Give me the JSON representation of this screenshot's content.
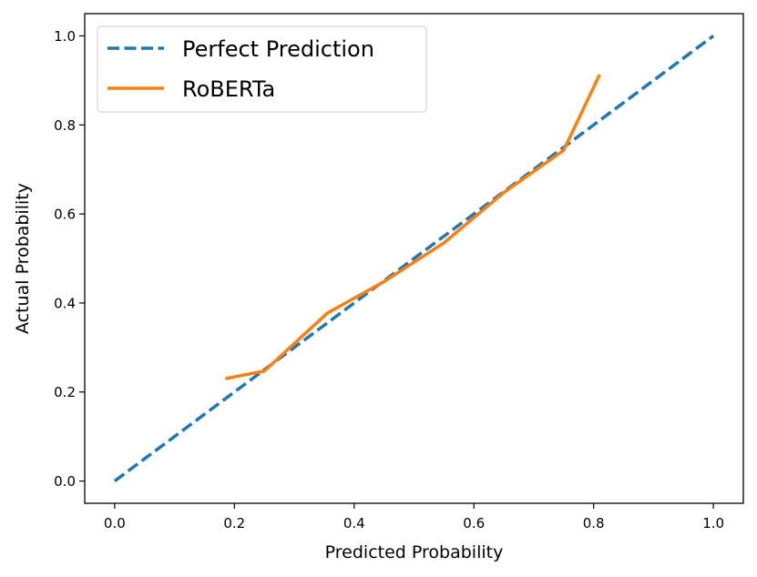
{
  "chart_data": {
    "type": "line",
    "xlabel": "Predicted Probability",
    "ylabel": "Actual Probability",
    "xlim": [
      -0.05,
      1.05
    ],
    "ylim": [
      -0.05,
      1.05
    ],
    "xticks": [
      "0.0",
      "0.2",
      "0.4",
      "0.6",
      "0.8",
      "1.0"
    ],
    "yticks": [
      "0.0",
      "0.2",
      "0.4",
      "0.6",
      "0.8",
      "1.0"
    ],
    "grid": false,
    "legend_position": "upper-left",
    "series": [
      {
        "name": "Perfect Prediction",
        "style": "dashed",
        "color": "#1f77b4",
        "x": [
          0.0,
          1.0
        ],
        "y": [
          0.0,
          1.0
        ]
      },
      {
        "name": "RoBERTa",
        "style": "solid",
        "color": "#ff7f0e",
        "x": [
          0.185,
          0.25,
          0.355,
          0.45,
          0.55,
          0.65,
          0.75,
          0.81
        ],
        "y": [
          0.23,
          0.247,
          0.377,
          0.448,
          0.535,
          0.648,
          0.743,
          0.913
        ]
      }
    ]
  }
}
